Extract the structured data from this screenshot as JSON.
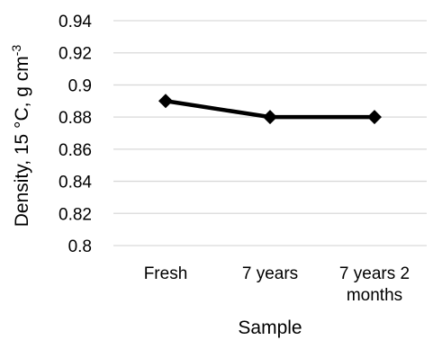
{
  "chart_data": {
    "type": "line",
    "categories": [
      [
        "Fresh"
      ],
      [
        "7 years"
      ],
      [
        "7 years 2",
        "months"
      ]
    ],
    "series": [
      {
        "values": [
          0.89,
          0.88,
          0.88
        ],
        "color": "#000000",
        "marker": "diamond"
      }
    ],
    "xlabel": "Sample",
    "ylabel": "Density, 15 °C, g cm",
    "ylabel_superscript": "-3",
    "ylim": [
      0.8,
      0.94
    ],
    "yticks": [
      "0.8",
      "0.82",
      "0.84",
      "0.86",
      "0.88",
      "0.9",
      "0.92",
      "0.94"
    ],
    "grid": "horizontal",
    "grid_color": "#d9d9d9",
    "legend": "none"
  }
}
